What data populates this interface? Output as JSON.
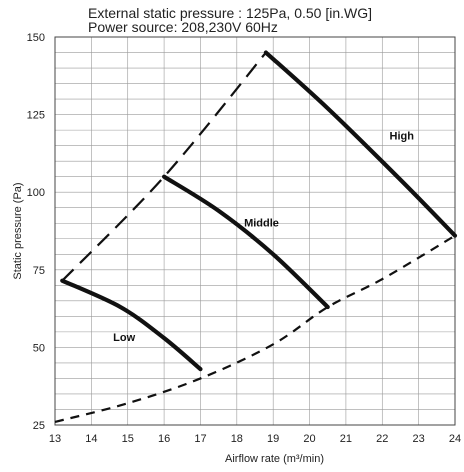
{
  "header": {
    "line1": "External static pressure : 125Pa, 0.50 [in.WG]",
    "line2": "Power source: 208,230V 60Hz"
  },
  "chart_data": {
    "type": "line",
    "title": "",
    "xlabel": "Airflow rate (m³/min)",
    "ylabel": "Static pressure  (Pa)",
    "xlim": [
      13,
      24
    ],
    "ylim": [
      25,
      150
    ],
    "x_ticks": [
      13,
      14,
      15,
      16,
      17,
      18,
      19,
      20,
      21,
      22,
      23,
      24
    ],
    "y_ticks": [
      25,
      50,
      75,
      100,
      125,
      150
    ],
    "grid": true,
    "series": [
      {
        "name": "High",
        "style": "solid",
        "points": [
          [
            18.8,
            145
          ],
          [
            20.5,
            127
          ],
          [
            22.5,
            104
          ],
          [
            24,
            86
          ]
        ]
      },
      {
        "name": "Middle",
        "style": "solid",
        "points": [
          [
            16,
            105
          ],
          [
            17.5,
            94
          ],
          [
            19,
            80
          ],
          [
            20.5,
            63
          ]
        ]
      },
      {
        "name": "Low",
        "style": "solid",
        "points": [
          [
            13.2,
            71.5
          ],
          [
            14.8,
            63
          ],
          [
            16,
            53
          ],
          [
            17,
            43
          ]
        ]
      },
      {
        "name": "",
        "style": "long-dash",
        "points": [
          [
            13.2,
            71.5
          ],
          [
            16,
            105
          ],
          [
            18.8,
            145
          ]
        ]
      },
      {
        "name": "",
        "style": "short-dash",
        "points": [
          [
            13,
            26
          ],
          [
            15,
            32
          ],
          [
            17,
            40
          ],
          [
            19,
            51
          ],
          [
            20.5,
            63
          ],
          [
            22,
            72
          ],
          [
            24,
            86
          ]
        ]
      }
    ],
    "annotations": [
      {
        "text": "High",
        "x": 22.2,
        "y": 117
      },
      {
        "text": "Middle",
        "x": 18.2,
        "y": 89
      },
      {
        "text": "Low",
        "x": 14.6,
        "y": 52
      }
    ]
  }
}
